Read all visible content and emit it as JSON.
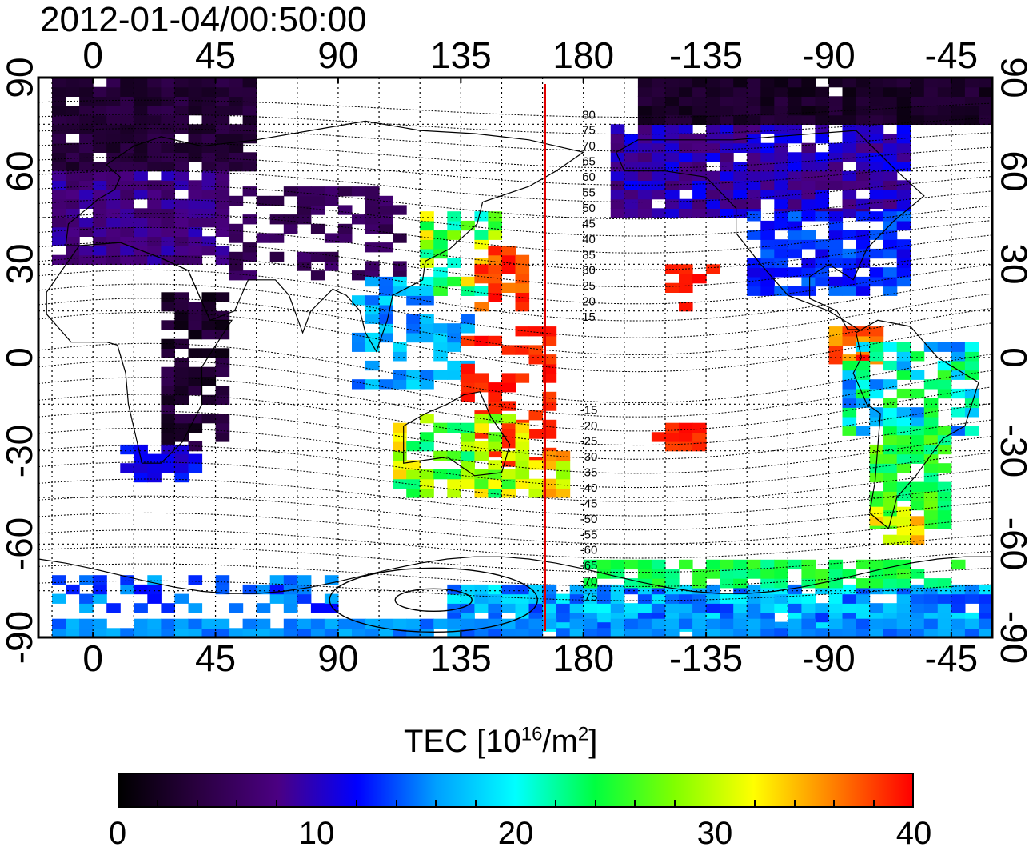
{
  "header": {
    "timestamp": "2012-01-04/00:50:00"
  },
  "axes": {
    "lon_ticks": [
      "0",
      "45",
      "90",
      "135",
      "180",
      "-135",
      "-90",
      "-45"
    ],
    "lat_ticks": [
      "90",
      "60",
      "30",
      "0",
      "-30",
      "-60",
      "-90"
    ],
    "lon_range": [
      -20,
      330
    ],
    "lat_range": [
      -90,
      90
    ]
  },
  "contour_labels": [
    "80",
    "75",
    "70",
    "65",
    "60",
    "55",
    "50",
    "45",
    "40",
    "35",
    "30",
    "25",
    "20",
    "15",
    "-15",
    "-20",
    "-25",
    "-30",
    "-35",
    "-40",
    "-45",
    "-50",
    "-55",
    "-60",
    "-65",
    "-70",
    "-75"
  ],
  "terminator_lon": 166,
  "colorbar": {
    "title_main": "TEC  [10",
    "title_sup1": "16",
    "title_mid": "/m",
    "title_sup2": "2",
    "title_end": "]",
    "ticks": [
      "0",
      "10",
      "20",
      "30",
      "40"
    ],
    "range": [
      0,
      40
    ],
    "colors": [
      "#000000",
      "#2a0040",
      "#4b0082",
      "#0000ff",
      "#00a0ff",
      "#00ffff",
      "#00ff40",
      "#80ff00",
      "#ffff00",
      "#ff8000",
      "#ff0000"
    ]
  },
  "colors": {
    "terminator": "#e00000",
    "grid": "#000000",
    "coast": "#000000"
  }
}
